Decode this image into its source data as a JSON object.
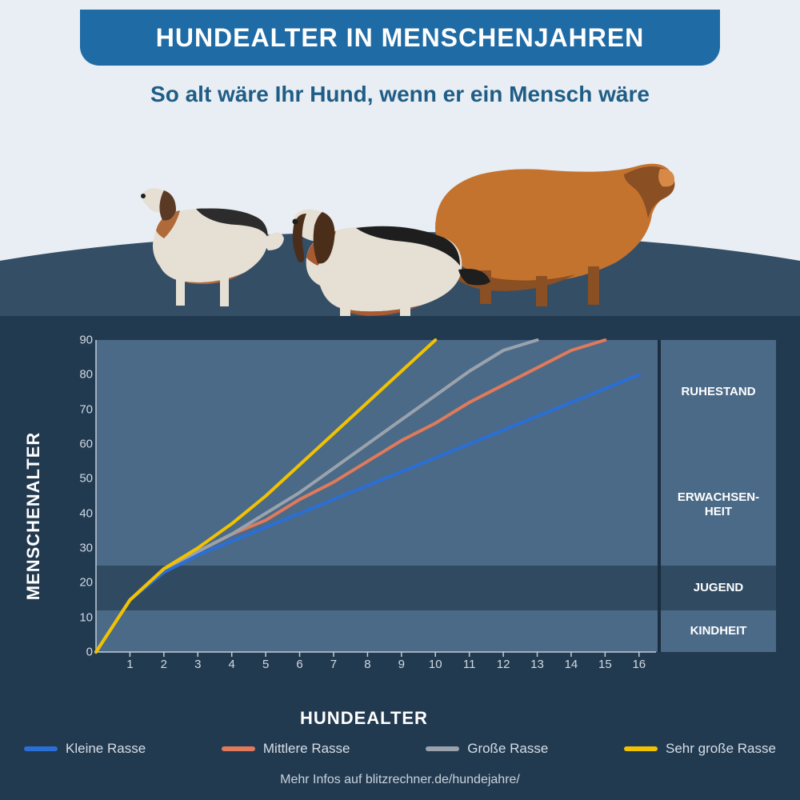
{
  "header": {
    "title": "HUNDEALTER IN MENSCHENJAHREN",
    "subtitle": "So alt wäre Ihr Hund, wenn er ein Mensch wäre"
  },
  "colors": {
    "page_bg": "#e8eef3",
    "pill_bg": "#1f6ba5",
    "subtitle": "#1f5d86",
    "arc": "#344e66",
    "panel": "#223a50",
    "band_light": "#4b6a88",
    "band_dark": "#304a62",
    "axis_text": "#cfd9e3",
    "side_divider": "#1a2e40"
  },
  "chart": {
    "type": "line",
    "x_label": "HUNDEALTER",
    "y_label": "MENSCHENALTER",
    "xlim": [
      0,
      16.5
    ],
    "ylim": [
      0,
      90
    ],
    "xticks": [
      1,
      2,
      3,
      4,
      5,
      6,
      7,
      8,
      9,
      10,
      11,
      12,
      13,
      14,
      15,
      16
    ],
    "yticks": [
      0,
      10,
      20,
      30,
      40,
      50,
      60,
      70,
      80,
      90
    ],
    "bands": [
      {
        "label": "KINDHEIT",
        "from": 0,
        "to": 12,
        "color": "#4b6a88"
      },
      {
        "label": "JUGEND",
        "from": 12,
        "to": 25,
        "color": "#304a62"
      },
      {
        "label": "ERWACHSEN-\nHEIT",
        "from": 25,
        "to": 60,
        "color": "#4b6a88"
      },
      {
        "label": "RUHESTAND",
        "from": 60,
        "to": 90,
        "color": "#304a62"
      }
    ],
    "bands_top_overlay": {
      "from": 60,
      "to": 90,
      "color": "#4b6a88"
    },
    "series": [
      {
        "name": "Kleine Rasse",
        "color": "#2a6fd6",
        "points": [
          [
            0,
            0
          ],
          [
            1,
            15
          ],
          [
            2,
            23
          ],
          [
            3,
            28
          ],
          [
            4,
            32
          ],
          [
            5,
            36
          ],
          [
            6,
            40
          ],
          [
            7,
            44
          ],
          [
            8,
            48
          ],
          [
            9,
            52
          ],
          [
            10,
            56
          ],
          [
            11,
            60
          ],
          [
            12,
            64
          ],
          [
            13,
            68
          ],
          [
            14,
            72
          ],
          [
            15,
            76
          ],
          [
            16,
            80
          ]
        ]
      },
      {
        "name": "Mittlere Rasse",
        "color": "#e07a5a",
        "points": [
          [
            0,
            0
          ],
          [
            1,
            15
          ],
          [
            2,
            24
          ],
          [
            3,
            29
          ],
          [
            4,
            34
          ],
          [
            5,
            38
          ],
          [
            6,
            44
          ],
          [
            7,
            49
          ],
          [
            8,
            55
          ],
          [
            9,
            61
          ],
          [
            10,
            66
          ],
          [
            11,
            72
          ],
          [
            12,
            77
          ],
          [
            13,
            82
          ],
          [
            14,
            87
          ],
          [
            15,
            90
          ]
        ]
      },
      {
        "name": "Große Rasse",
        "color": "#9aa3ad",
        "points": [
          [
            0,
            0
          ],
          [
            1,
            15
          ],
          [
            2,
            24
          ],
          [
            3,
            29
          ],
          [
            4,
            34
          ],
          [
            5,
            40
          ],
          [
            6,
            46
          ],
          [
            7,
            53
          ],
          [
            8,
            60
          ],
          [
            9,
            67
          ],
          [
            10,
            74
          ],
          [
            11,
            81
          ],
          [
            12,
            87
          ],
          [
            13,
            90
          ]
        ]
      },
      {
        "name": "Sehr große Rasse",
        "color": "#f2c200",
        "points": [
          [
            0,
            0
          ],
          [
            1,
            15
          ],
          [
            2,
            24
          ],
          [
            3,
            30
          ],
          [
            4,
            37
          ],
          [
            5,
            45
          ],
          [
            6,
            54
          ],
          [
            7,
            63
          ],
          [
            8,
            72
          ],
          [
            9,
            81
          ],
          [
            10,
            90
          ]
        ]
      }
    ],
    "line_width": 4
  },
  "legend": [
    {
      "label": "Kleine Rasse",
      "color": "#2a6fd6"
    },
    {
      "label": "Mittlere Rasse",
      "color": "#e07a5a"
    },
    {
      "label": "Große Rasse",
      "color": "#9aa3ad"
    },
    {
      "label": "Sehr große Rasse",
      "color": "#f2c200"
    }
  ],
  "footer": "Mehr Infos auf blitzrechner.de/hundejahre/",
  "dogs": {
    "beagle": {
      "body": "#e6e0d4",
      "brown": "#b06a3a",
      "dark": "#2c2c2c",
      "ear": "#5a3a24"
    },
    "basset": {
      "body": "#e6e0d4",
      "brown": "#a85a30",
      "dark": "#1e1e1e",
      "ear": "#4a2e1a"
    },
    "golden": {
      "body": "#c4732f",
      "dark": "#8a4f22",
      "light": "#d68a46"
    }
  }
}
